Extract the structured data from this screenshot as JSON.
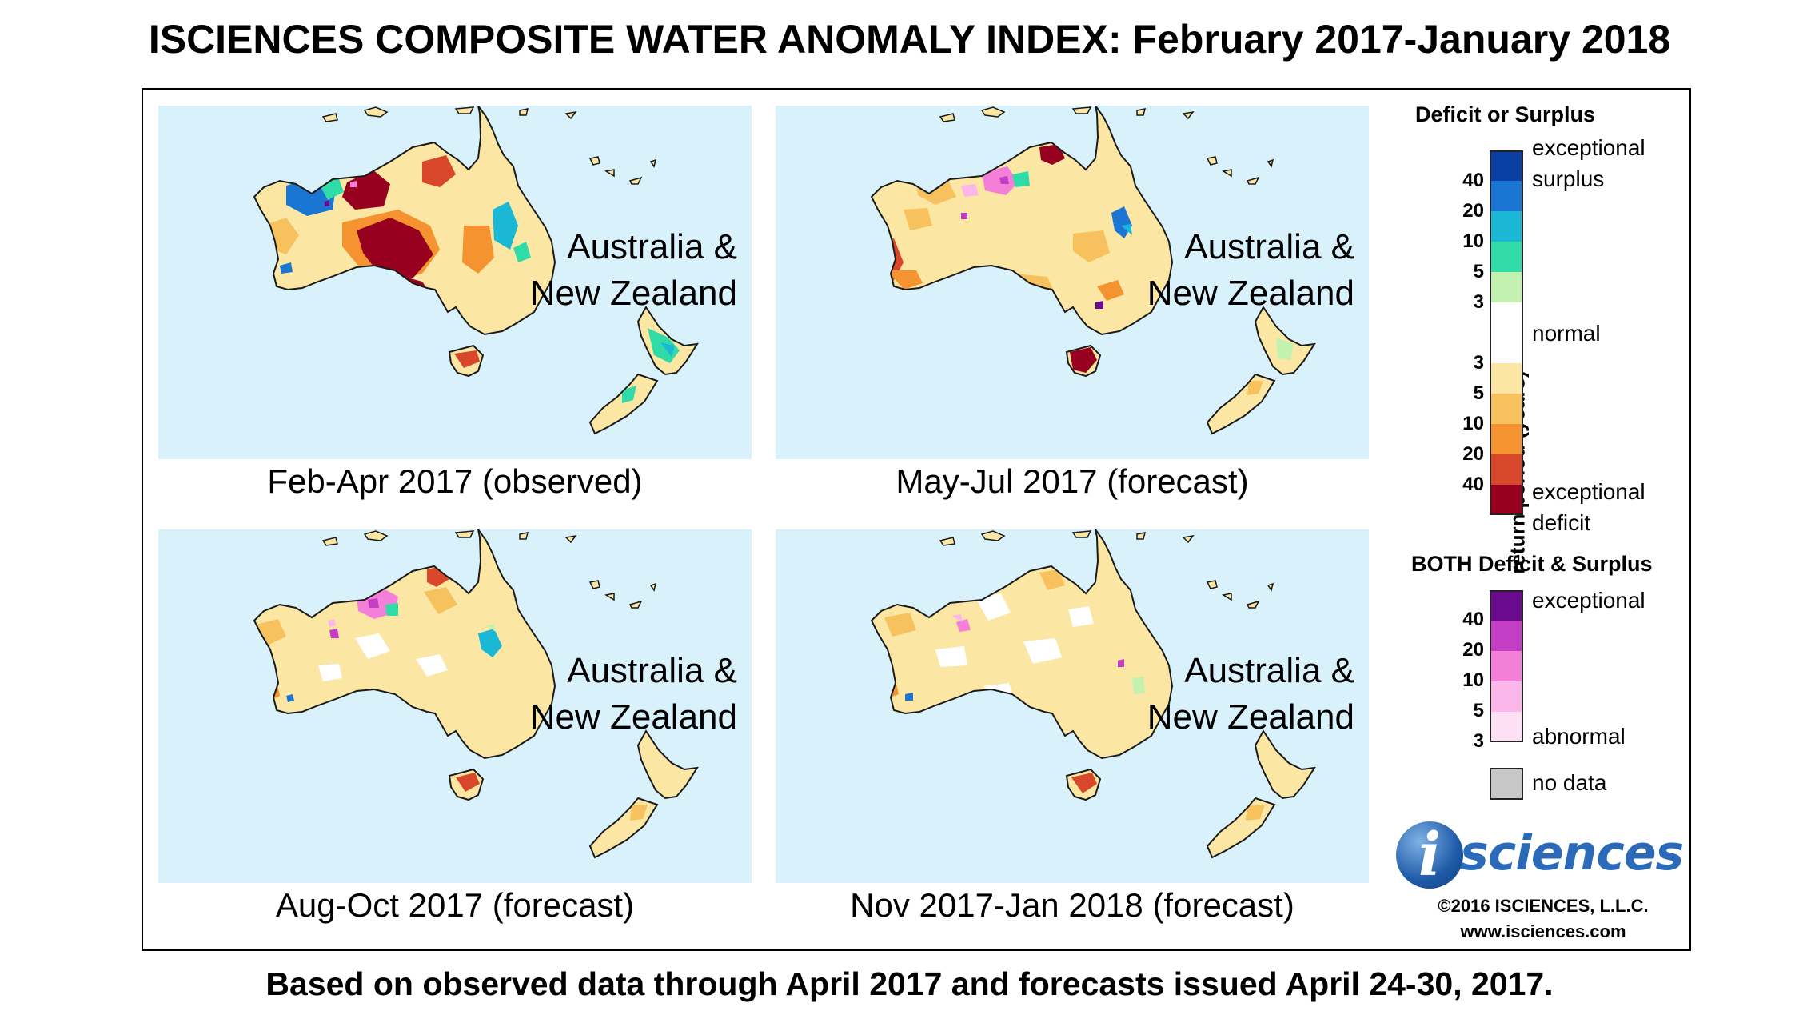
{
  "title": "ISCIENCES COMPOSITE WATER ANOMALY INDEX: February 2017-January 2018",
  "footer": "Based on observed data through April 2017 and forecasts issued April 24-30, 2017.",
  "panels": [
    {
      "region": [
        "Australia &",
        "New Zealand"
      ],
      "caption": "Feb-Apr 2017 (observed)",
      "scenario": "observed-extreme"
    },
    {
      "region": [
        "Australia &",
        "New Zealand"
      ],
      "caption": "May-Jul 2017 (forecast)",
      "scenario": "moderate-deficit"
    },
    {
      "region": [
        "Australia &",
        "New Zealand"
      ],
      "caption": "Aug-Oct 2017 (forecast)",
      "scenario": "mild-deficit"
    },
    {
      "region": [
        "Australia &",
        "New Zealand"
      ],
      "caption": "Nov 2017-Jan 2018 (forecast)",
      "scenario": "mild-deficit-late"
    }
  ],
  "legend": {
    "deficit_surplus": {
      "title": "Deficit or Surplus",
      "axis_label": "return period (years)",
      "top_label": [
        "exceptional",
        "surplus"
      ],
      "normal_label": "normal",
      "bottom_label": [
        "exceptional",
        "deficit"
      ],
      "surplus_ticks": [
        "40",
        "20",
        "10",
        "5",
        "3"
      ],
      "deficit_ticks": [
        "3",
        "5",
        "10",
        "20",
        "40"
      ],
      "surplus_colors": [
        "#0a3fa3",
        "#1a76d2",
        "#1bb8d6",
        "#2fdca8",
        "#c3f2b0"
      ],
      "normal_color": "#ffffff",
      "deficit_colors": [
        "#fbe6a3",
        "#f7c25d",
        "#f59331",
        "#d9472b",
        "#97001f"
      ]
    },
    "both": {
      "title": "BOTH Deficit & Surplus",
      "top_label": "exceptional",
      "bottom_label": "abnormal",
      "ticks": [
        "40",
        "20",
        "10",
        "5",
        "3"
      ],
      "colors": [
        "#6a0a8e",
        "#c33ec4",
        "#f37fd9",
        "#fbb7ea",
        "#fde0f4"
      ]
    },
    "no_data": {
      "label": "no data",
      "color": "#c8c8c8"
    }
  },
  "colors": {
    "ocean": "#d9f1fb",
    "land_normal": "#fbe6a3",
    "coast": "#1a1a1a"
  },
  "logo": {
    "letter": "i",
    "word": "sciences"
  },
  "copyright": "©2016 ISCIENCES, L.L.C.",
  "website": "www.isciences.com"
}
